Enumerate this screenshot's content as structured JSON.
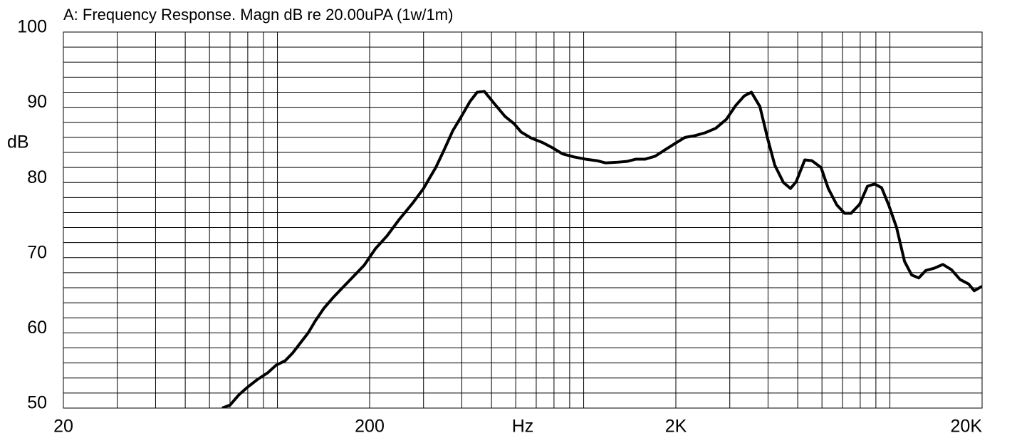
{
  "chart_data": {
    "type": "line",
    "title": "A: Frequency Response. Magn dB re 20.00uPA (1w/1m)",
    "x_label": "Hz",
    "y_label": "dB",
    "x_scale": "log",
    "xlim": [
      20,
      20000
    ],
    "xticks": [
      20,
      200,
      {
        "value": 2000,
        "label": "2K"
      },
      {
        "value": 20000,
        "label": "20K"
      }
    ],
    "xminorticks": [
      30,
      40,
      50,
      60,
      70,
      80,
      90,
      100,
      300,
      400,
      500,
      600,
      700,
      800,
      900,
      1000,
      3000,
      4000,
      5000,
      6000,
      7000,
      8000,
      9000,
      10000
    ],
    "ylim": [
      50,
      100
    ],
    "yticks": [
      50,
      60,
      70,
      80,
      90,
      100
    ],
    "yminorticks": [
      52,
      54,
      56,
      58,
      62,
      64,
      66,
      68,
      72,
      74,
      76,
      78,
      82,
      84,
      86,
      88,
      92,
      94,
      96,
      98
    ],
    "grid": true,
    "series": [
      {
        "color": "#000000",
        "x": [
          66,
          70,
          75,
          80,
          86,
          93,
          99,
          106,
          112,
          118,
          126,
          133,
          142,
          152,
          164,
          178,
          192,
          209,
          228,
          249,
          277,
          300,
          314,
          329,
          349,
          374,
          399,
          426,
          449,
          474,
          508,
          553,
          593,
          625,
          674,
          735,
          792,
          853,
          929,
          1013,
          1104,
          1178,
          1297,
          1384,
          1483,
          1589,
          1714,
          1854,
          2010,
          2144,
          2296,
          2490,
          2698,
          2924,
          3133,
          3342,
          3529,
          3762,
          3990,
          4208,
          4490,
          4734,
          4944,
          5272,
          5560,
          5958,
          6291,
          6711,
          7115,
          7466,
          7962,
          8450,
          8913,
          9398,
          9910,
          10516,
          11164,
          11776,
          12422,
          13102,
          13964,
          14892,
          15886,
          16944,
          18072,
          18846,
          20000
        ],
        "values": [
          50.0,
          50.4,
          51.8,
          52.8,
          53.8,
          54.7,
          55.7,
          56.3,
          57.3,
          58.5,
          60.0,
          61.6,
          63.3,
          64.7,
          66.1,
          67.6,
          69.0,
          71.2,
          72.9,
          75.0,
          77.3,
          79.2,
          80.6,
          82.0,
          84.2,
          86.9,
          88.8,
          90.8,
          92.0,
          92.1,
          90.6,
          88.8,
          87.8,
          86.7,
          85.9,
          85.3,
          84.6,
          83.8,
          83.4,
          83.1,
          82.9,
          82.6,
          82.7,
          82.8,
          83.1,
          83.1,
          83.5,
          84.4,
          85.3,
          86.0,
          86.2,
          86.6,
          87.2,
          88.4,
          90.2,
          91.5,
          92.0,
          90.1,
          85.8,
          82.3,
          80.0,
          79.2,
          80.1,
          83.0,
          82.9,
          82.0,
          79.2,
          77.0,
          75.9,
          75.9,
          77.1,
          79.5,
          79.8,
          79.3,
          77.0,
          74.0,
          69.5,
          67.7,
          67.3,
          68.3,
          68.6,
          69.1,
          68.4,
          67.1,
          66.5,
          65.6,
          66.2
        ]
      }
    ]
  }
}
